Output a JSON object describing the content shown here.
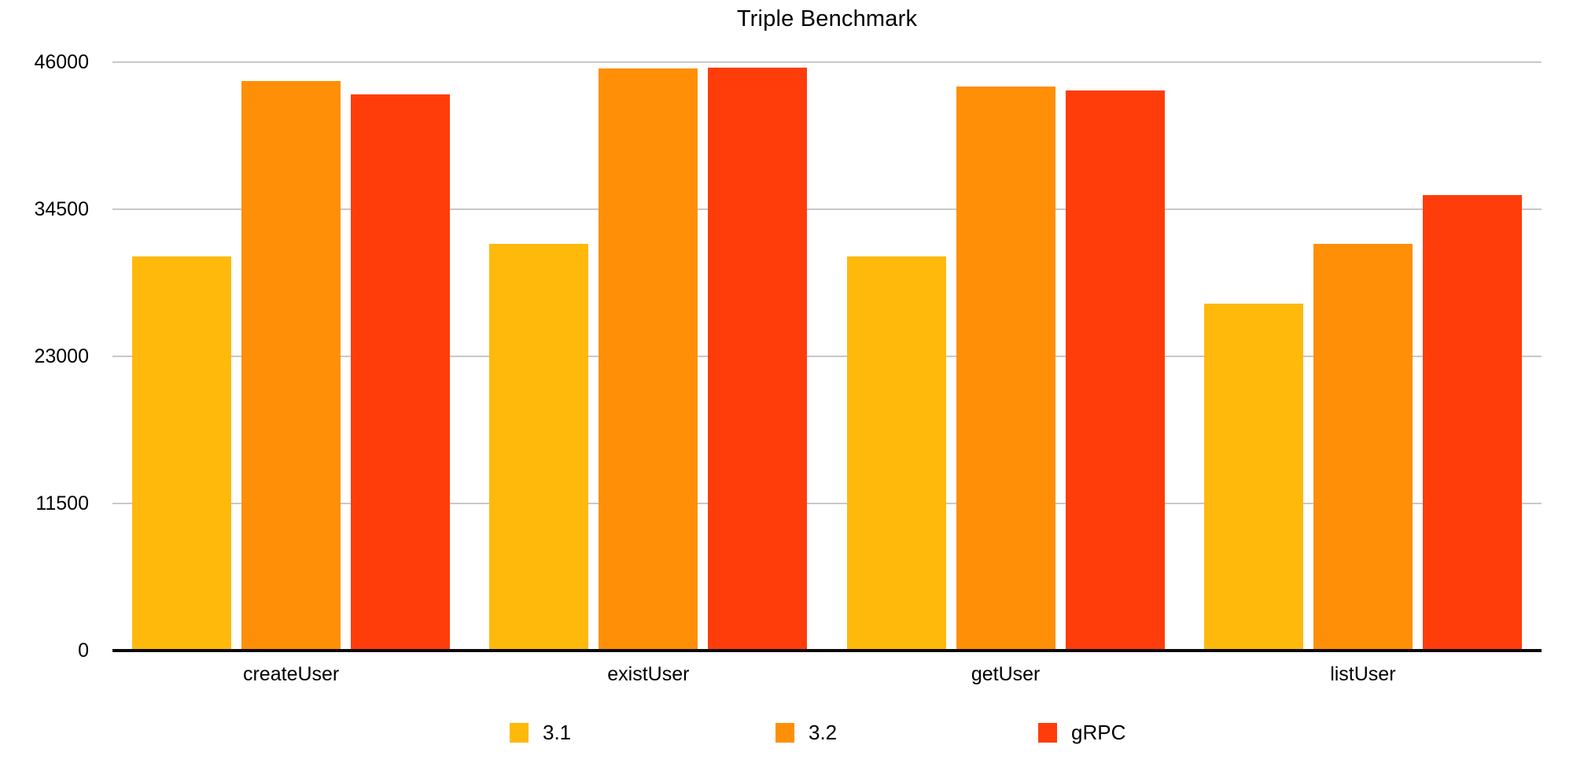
{
  "chart_data": {
    "type": "bar",
    "title": "Triple Benchmark",
    "categories": [
      "createUser",
      "existUser",
      "getUser",
      "listUser"
    ],
    "series": [
      {
        "name": "3.1",
        "color": "#FFB90B",
        "values": [
          30800,
          31800,
          30800,
          27100
        ]
      },
      {
        "name": "3.2",
        "color": "#FF8F07",
        "values": [
          44500,
          45500,
          44100,
          31800
        ]
      },
      {
        "name": "gRPC",
        "color": "#FF3D0A",
        "values": [
          43500,
          45600,
          43800,
          35600
        ]
      }
    ],
    "xlabel": "",
    "ylabel": "",
    "ylim": [
      0,
      46000
    ],
    "yticks": [
      0,
      11500,
      23000,
      34500,
      46000
    ],
    "grid": true,
    "legend_position": "bottom"
  },
  "colors": {
    "background": "#FFFFFF",
    "gridline": "#C8C8C8",
    "axis": "#0A0A0A",
    "text": "#000000"
  }
}
